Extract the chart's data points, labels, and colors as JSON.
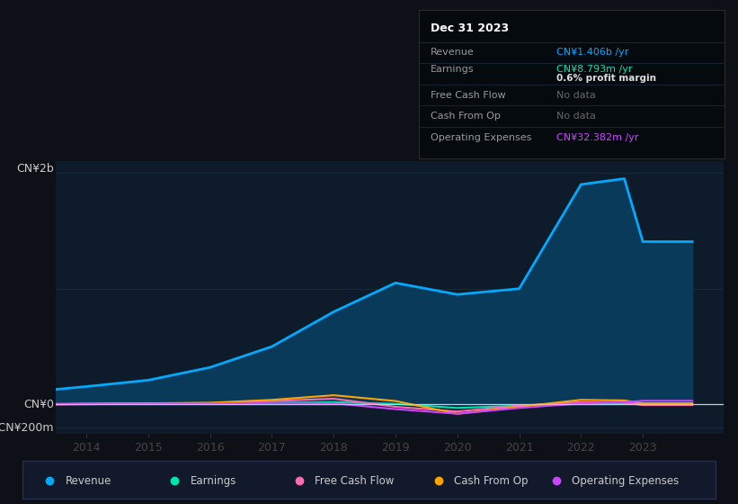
{
  "background_color": "#0d1117",
  "plot_bg_color": "#0d1b2a",
  "ylabel_top": "CN¥2b",
  "ylabel_zero": "CN¥0",
  "ylabel_neg": "-CN¥200m",
  "years": [
    2013.5,
    2014,
    2015,
    2016,
    2017,
    2018,
    2019,
    2020,
    2021,
    2022,
    2022.7,
    2023,
    2023.8
  ],
  "revenue": [
    130,
    155,
    210,
    320,
    500,
    800,
    1050,
    950,
    1000,
    1900,
    1950,
    1406,
    1406
  ],
  "earnings": [
    5,
    8,
    10,
    12,
    15,
    20,
    5,
    -30,
    -10,
    5,
    6,
    8,
    8
  ],
  "free_cash_flow": [
    2,
    3,
    5,
    8,
    30,
    50,
    -20,
    -60,
    -10,
    20,
    15,
    -5,
    -5
  ],
  "cash_from_op": [
    2,
    5,
    10,
    15,
    40,
    80,
    30,
    -80,
    -20,
    40,
    35,
    10,
    10
  ],
  "operating_expenses": [
    2,
    3,
    5,
    8,
    15,
    10,
    -40,
    -80,
    -30,
    10,
    20,
    32,
    32
  ],
  "revenue_color": "#00aaff",
  "revenue_fill": "#0a3a5a",
  "earnings_color": "#00e5b0",
  "free_cash_flow_color": "#ff69b4",
  "cash_from_op_color": "#ffa500",
  "operating_expenses_color": "#cc44ff",
  "ylim_m": [
    -250,
    2100
  ],
  "xlim": [
    2013.5,
    2024.3
  ],
  "x_ticks": [
    2014,
    2015,
    2016,
    2017,
    2018,
    2019,
    2020,
    2021,
    2022,
    2023
  ],
  "grid_color": "#1a2a3a",
  "zero_line_color": "#cccccc",
  "info_box": {
    "title": "Dec 31 2023",
    "rows": [
      {
        "label": "Revenue",
        "value": "CN¥1.406b /yr",
        "val_color": "#00aaff",
        "extra": null
      },
      {
        "label": "Earnings",
        "value": "CN¥8.793m /yr",
        "val_color": "#00e5b0",
        "extra": "0.6% profit margin"
      },
      {
        "label": "Free Cash Flow",
        "value": "No data",
        "val_color": "#666666",
        "extra": null
      },
      {
        "label": "Cash From Op",
        "value": "No data",
        "val_color": "#666666",
        "extra": null
      },
      {
        "label": "Operating Expenses",
        "value": "CN¥32.382m /yr",
        "val_color": "#cc44ff",
        "extra": null
      }
    ],
    "bg_color": "#050a0f",
    "border_color": "#2a2a2a",
    "title_color": "#ffffff",
    "label_color": "#999999",
    "divider_color": "#1e2d3d",
    "margin_color": "#dddddd"
  },
  "legend_entries": [
    "Revenue",
    "Earnings",
    "Free Cash Flow",
    "Cash From Op",
    "Operating Expenses"
  ],
  "legend_colors": [
    "#00aaff",
    "#00e5b0",
    "#ff69b4",
    "#ffa500",
    "#cc44ff"
  ],
  "legend_bg": "#12192a",
  "legend_border": "#2a3050"
}
